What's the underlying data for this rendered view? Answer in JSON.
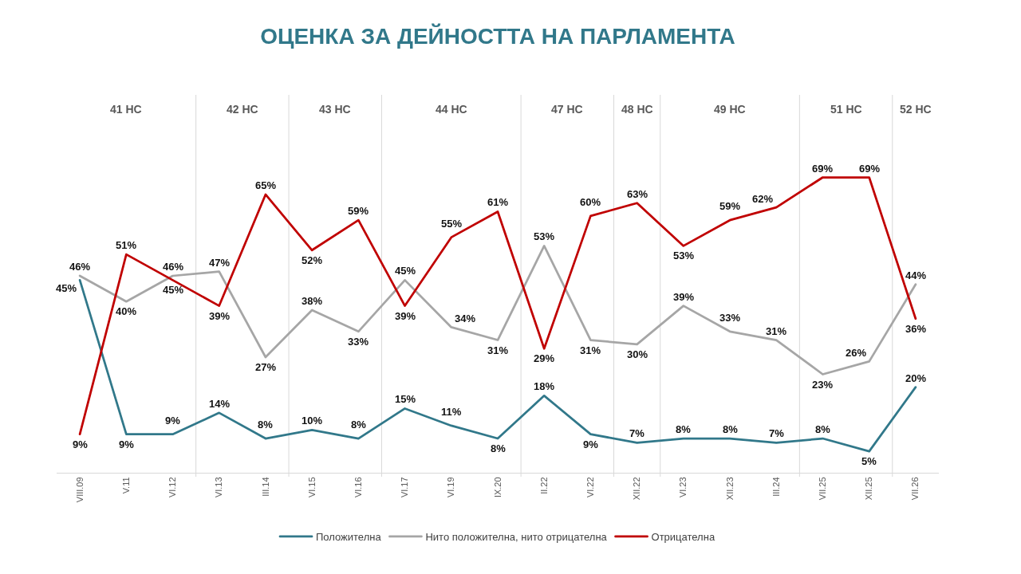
{
  "chart_data": {
    "type": "line",
    "title": "ОЦЕНКА ЗА ДЕЙНОСТТА НА ПАРЛАМЕНТА",
    "categories": [
      "VIII.09",
      "V.11",
      "VI.12",
      "VI.13",
      "III.14",
      "VI.15",
      "VI.16",
      "VI.17",
      "VI.19",
      "IX.20",
      "II.22",
      "VI.22",
      "XII.22",
      "VI.23",
      "XII.23",
      "III.24",
      "VII.25",
      "XII.25",
      "VII.26"
    ],
    "series": [
      {
        "name": "Положителна",
        "color": "#31788a",
        "values": [
          45,
          9,
          9,
          14,
          8,
          10,
          8,
          15,
          11,
          8,
          18,
          9,
          7,
          8,
          8,
          7,
          8,
          5,
          20
        ],
        "value_labels": [
          "45%",
          "9%",
          "9%",
          "14%",
          "8%",
          "10%",
          "8%",
          "15%",
          "11%",
          "8%",
          "18%",
          "9%",
          "7%",
          "8%",
          "8%",
          "7%",
          "8%",
          "5%",
          "20%"
        ]
      },
      {
        "name": "Нито положителна, нито отрицателна",
        "color": "#a6a6a6",
        "values": [
          46,
          40,
          46,
          47,
          27,
          38,
          33,
          45,
          34,
          31,
          53,
          31,
          30,
          39,
          33,
          31,
          23,
          26,
          44
        ],
        "value_labels": [
          "46%",
          "40%",
          "46%",
          "47%",
          "27%",
          "38%",
          "33%",
          "45%",
          "34%",
          "31%",
          "53%",
          "31%",
          "30%",
          "39%",
          "33%",
          "31%",
          "23%",
          "26%",
          "44%"
        ]
      },
      {
        "name": "Отрицателна",
        "color": "#c00000",
        "values": [
          9,
          51,
          45,
          39,
          65,
          52,
          59,
          39,
          55,
          61,
          29,
          60,
          63,
          53,
          59,
          62,
          69,
          69,
          36
        ],
        "value_labels": [
          "9%",
          "51%",
          "45%",
          "39%",
          "65%",
          "52%",
          "59%",
          "39%",
          "55%",
          "61%",
          "29%",
          "60%",
          "63%",
          "53%",
          "59%",
          "62%",
          "69%",
          "69%",
          "36%"
        ]
      }
    ],
    "annotations": [
      "41 НС",
      "42 НС",
      "43 НС",
      "44 НС",
      "47 НС",
      "48 НС",
      "49 НС",
      "51 НС",
      "52 НС"
    ],
    "legend": "bottom",
    "marker": "none"
  }
}
